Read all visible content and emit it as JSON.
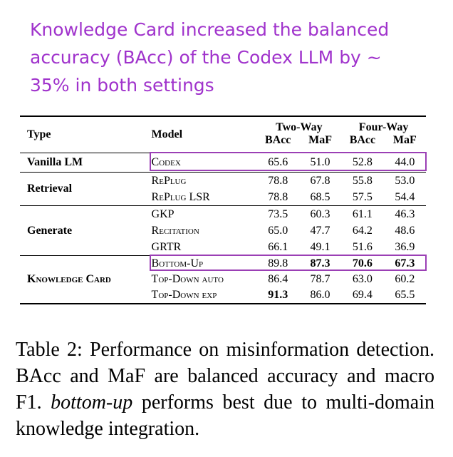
{
  "annotation": "Knowledge Card increased the balanced accuracy (BAcc) of the Codex LLM by ~ 35% in both settings",
  "table": {
    "header": {
      "type": "Type",
      "model": "Model",
      "groups": [
        "Two-Way",
        "Four-Way"
      ],
      "metrics": [
        "BAcc",
        "MaF",
        "BAcc",
        "MaF"
      ]
    },
    "sections": [
      {
        "type": "Vanilla LM",
        "rows": [
          {
            "model": "Codex",
            "values": [
              "65.6",
              "51.0",
              "52.8",
              "44.0"
            ]
          }
        ]
      },
      {
        "type": "Retrieval",
        "rows": [
          {
            "model": "RePlug",
            "values": [
              "78.8",
              "67.8",
              "55.8",
              "53.0"
            ]
          },
          {
            "model": "RePlug LSR",
            "values": [
              "78.8",
              "68.5",
              "57.5",
              "54.4"
            ]
          }
        ]
      },
      {
        "type": "Generate",
        "rows": [
          {
            "model": "GKP",
            "values": [
              "73.5",
              "60.3",
              "61.1",
              "46.3"
            ]
          },
          {
            "model": "Recitation",
            "values": [
              "65.0",
              "47.7",
              "64.2",
              "48.6"
            ]
          },
          {
            "model": "GRTR",
            "values": [
              "66.1",
              "49.1",
              "51.6",
              "36.9"
            ]
          }
        ]
      },
      {
        "type": "Knowledge Card",
        "rows": [
          {
            "model": "Bottom-Up",
            "values": [
              "89.8",
              "87.3",
              "70.6",
              "67.3"
            ]
          },
          {
            "model": "Top-Down auto",
            "values": [
              "86.4",
              "78.7",
              "63.0",
              "60.2"
            ]
          },
          {
            "model": "Top-Down exp",
            "values": [
              "91.3",
              "86.0",
              "69.4",
              "65.5"
            ]
          }
        ]
      }
    ]
  },
  "caption": {
    "parts": [
      "Table 2: Performance on misinformation detection. BAcc and MaF are balanced accuracy and macro F1. ",
      "bottom-up",
      " performs best due to multi-domain knowledge integration."
    ]
  }
}
